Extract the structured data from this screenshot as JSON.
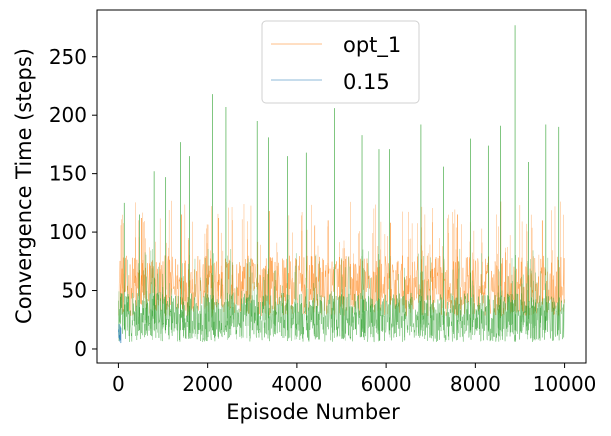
{
  "chart_data": {
    "type": "line",
    "xlabel": "Episode Number",
    "ylabel": "Convergence Time (steps)",
    "xlim": [
      -480,
      10480
    ],
    "ylim": [
      -12,
      290
    ],
    "x_ticks": [
      0,
      2000,
      4000,
      6000,
      8000,
      10000
    ],
    "x_tick_labels": [
      "0",
      "2000",
      "4000",
      "6000",
      "8000",
      "10000"
    ],
    "y_ticks": [
      0,
      50,
      100,
      150,
      200,
      250
    ],
    "y_tick_labels": [
      "0",
      "50",
      "100",
      "150",
      "200",
      "250"
    ],
    "grid": false,
    "legend_position": "top-center",
    "series": [
      {
        "name": "opt_1",
        "color": "#ff7f0e",
        "line_width": 0.3,
        "x_range": [
          0,
          10000
        ],
        "typical_range": [
          28,
          80
        ],
        "peaks": [
          {
            "x": 520,
            "y": 112
          },
          {
            "x": 1410,
            "y": 115
          },
          {
            "x": 2240,
            "y": 112
          },
          {
            "x": 3380,
            "y": 118
          },
          {
            "x": 4700,
            "y": 110
          },
          {
            "x": 6100,
            "y": 108
          },
          {
            "x": 7600,
            "y": 115
          },
          {
            "x": 9500,
            "y": 110
          }
        ]
      },
      {
        "name": "0.15",
        "color": "#1f77b4",
        "line_width": 0.3,
        "x_range": [
          0,
          60
        ],
        "typical_range": [
          5,
          22
        ]
      },
      {
        "name": "",
        "color": "#2ca02c",
        "line_width": 0.3,
        "x_range": [
          0,
          10000
        ],
        "typical_range": [
          6,
          48
        ],
        "peaks": [
          {
            "x": 130,
            "y": 125
          },
          {
            "x": 470,
            "y": 115
          },
          {
            "x": 800,
            "y": 152
          },
          {
            "x": 1060,
            "y": 147
          },
          {
            "x": 1390,
            "y": 177
          },
          {
            "x": 1590,
            "y": 165
          },
          {
            "x": 2110,
            "y": 218
          },
          {
            "x": 2410,
            "y": 207
          },
          {
            "x": 3110,
            "y": 195
          },
          {
            "x": 3360,
            "y": 181
          },
          {
            "x": 3790,
            "y": 165
          },
          {
            "x": 4210,
            "y": 168
          },
          {
            "x": 4840,
            "y": 206
          },
          {
            "x": 5460,
            "y": 183
          },
          {
            "x": 5840,
            "y": 171
          },
          {
            "x": 6080,
            "y": 171
          },
          {
            "x": 6780,
            "y": 192
          },
          {
            "x": 7290,
            "y": 156
          },
          {
            "x": 7890,
            "y": 180
          },
          {
            "x": 8290,
            "y": 174
          },
          {
            "x": 8560,
            "y": 191
          },
          {
            "x": 8890,
            "y": 277
          },
          {
            "x": 9190,
            "y": 160
          },
          {
            "x": 9580,
            "y": 192
          },
          {
            "x": 9870,
            "y": 190
          }
        ]
      }
    ]
  }
}
